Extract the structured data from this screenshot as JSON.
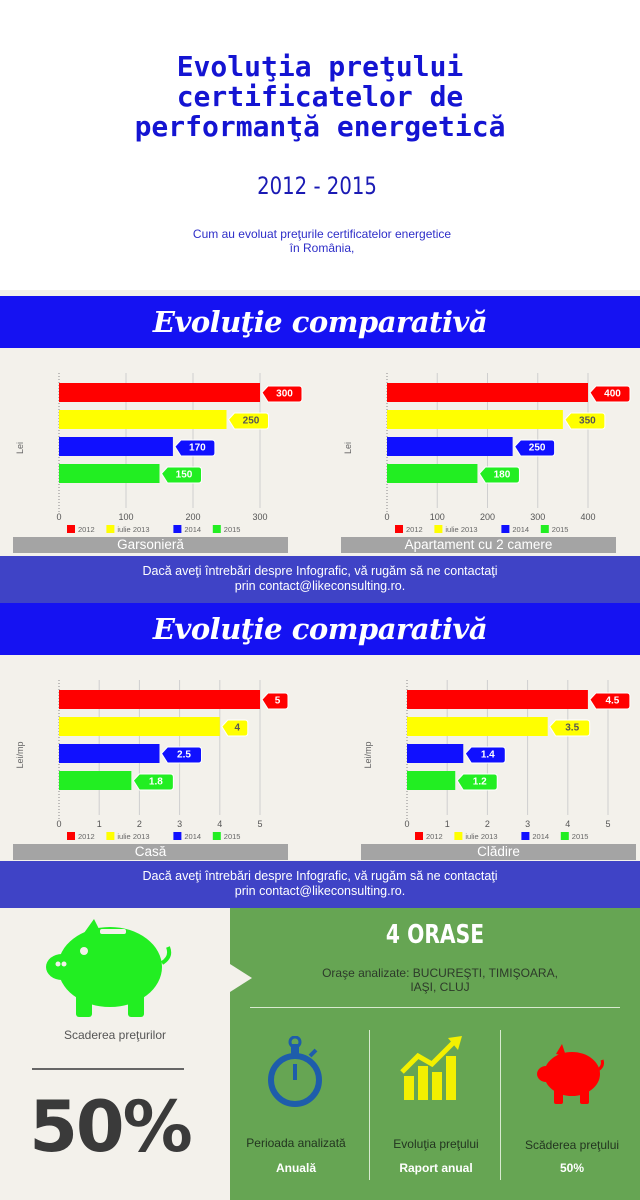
{
  "header": {
    "title": "Evoluţia preţului\ncertificatelor de\nperformanţă energetică",
    "years": "2012 - 2015",
    "subtitle": "Cum au evoluat preţurile certificatelor energetice\nîn România,"
  },
  "sections": [
    {
      "band_title": "Evoluţie comparativă"
    },
    {
      "band_title": "Evoluţie comparativă"
    }
  ],
  "contact_text": "Dacă aveţi întrebări despre Infografic, vă rugăm să ne contactaţi\nprin contact@likeconsulting.ro.",
  "colors": {
    "2012": "#ff0000",
    "iulie 2013": "#ffff00",
    "2014": "#1010ff",
    "2015": "#22ee22",
    "band": "#1512f2",
    "contact": "#3f43c6",
    "green_panel": "#66a553"
  },
  "chart_data": [
    {
      "type": "bar",
      "orientation": "horizontal",
      "caption": "Garsonieră",
      "ylabel": "Lei",
      "series": [
        {
          "name": "2012",
          "value": 300,
          "label": "300"
        },
        {
          "name": "iulie 2013",
          "value": 250,
          "label": "250"
        },
        {
          "name": "2014",
          "value": 170,
          "label": "170"
        },
        {
          "name": "2015",
          "value": 150,
          "label": "150"
        }
      ],
      "xlim": [
        0,
        300
      ],
      "ticks": [
        0,
        100,
        200,
        300
      ],
      "grid": true,
      "legend": "bottom"
    },
    {
      "type": "bar",
      "orientation": "horizontal",
      "caption": "Apartament cu 2 camere",
      "ylabel": "Lei",
      "series": [
        {
          "name": "2012",
          "value": 400,
          "label": "400"
        },
        {
          "name": "iulie 2013",
          "value": 350,
          "label": "350"
        },
        {
          "name": "2014",
          "value": 250,
          "label": "250"
        },
        {
          "name": "2015",
          "value": 180,
          "label": "180"
        }
      ],
      "xlim": [
        0,
        400
      ],
      "ticks": [
        0,
        100,
        200,
        300,
        400
      ],
      "grid": true,
      "legend": "bottom"
    },
    {
      "type": "bar",
      "orientation": "horizontal",
      "caption": "Casă",
      "ylabel": "Lei/mp",
      "series": [
        {
          "name": "2012",
          "value": 5,
          "label": "5"
        },
        {
          "name": "iulie 2013",
          "value": 4,
          "label": "4"
        },
        {
          "name": "2014",
          "value": 2.5,
          "label": "2.5"
        },
        {
          "name": "2015",
          "value": 1.8,
          "label": "1.8"
        }
      ],
      "xlim": [
        0,
        5
      ],
      "ticks": [
        0,
        1,
        2,
        3,
        4,
        5
      ],
      "grid": true,
      "legend": "bottom"
    },
    {
      "type": "bar",
      "orientation": "horizontal",
      "caption": "Clădire",
      "ylabel": "Lei/mp",
      "series": [
        {
          "name": "2012",
          "value": 4.5,
          "label": "4.5"
        },
        {
          "name": "iulie 2013",
          "value": 3.5,
          "label": "3.5"
        },
        {
          "name": "2014",
          "value": 1.4,
          "label": "1.4"
        },
        {
          "name": "2015",
          "value": 1.2,
          "label": "1.2"
        }
      ],
      "xlim": [
        0,
        5
      ],
      "ticks": [
        0,
        1,
        2,
        3,
        4,
        5
      ],
      "grid": true,
      "legend": "bottom"
    }
  ],
  "summary": {
    "left_label": "Scaderea preţurilor",
    "left_value": "50%",
    "orase_title": "4 ORASE",
    "orase_text": "Oraşe analizate: BUCUREŞTI, TIMIŞOARA,\nIAŞI, CLUJ",
    "columns": [
      {
        "label": "Perioada analizată",
        "value": "Anuală",
        "icon": "stopwatch-icon"
      },
      {
        "label": "Evoluţia preţului",
        "value": "Raport anual",
        "icon": "bar-chart-growth-icon"
      },
      {
        "label": "Scăderea preţului",
        "value": "50%",
        "icon": "piggy-bank-icon"
      }
    ],
    "left_icon": "piggy-bank-icon"
  }
}
